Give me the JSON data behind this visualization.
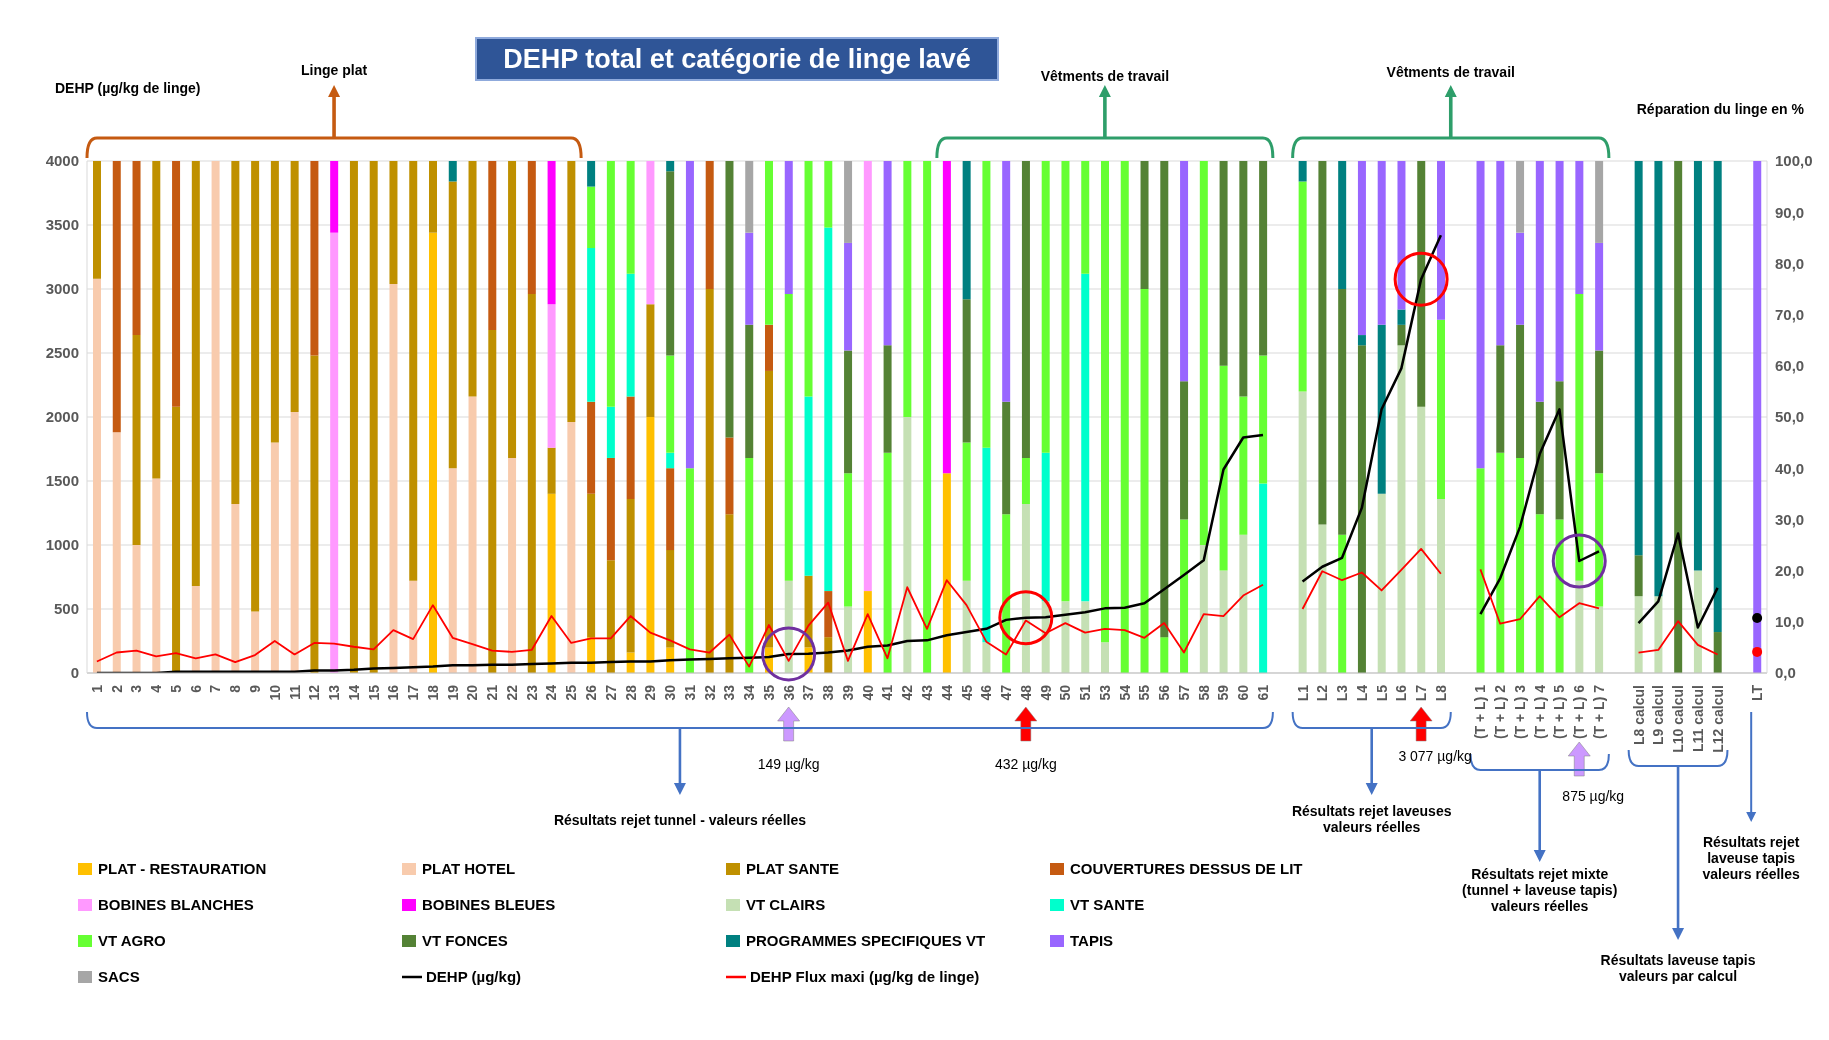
{
  "chart_data": {
    "type": "bar",
    "stacked": true,
    "title": "DEHP total et catégorie de linge lavé",
    "ylabel": "DEHP (µg/kg de linge)",
    "y2label": "Réparation du linge en %",
    "categories": [
      "1",
      "2",
      "3",
      "4",
      "5",
      "6",
      "7",
      "8",
      "9",
      "10",
      "11",
      "12",
      "13",
      "14",
      "15",
      "16",
      "17",
      "18",
      "19",
      "20",
      "21",
      "22",
      "23",
      "24",
      "25",
      "26",
      "27",
      "28",
      "29",
      "30",
      "31",
      "32",
      "33",
      "34",
      "35",
      "36",
      "37",
      "38",
      "39",
      "40",
      "41",
      "42",
      "43",
      "44",
      "45",
      "46",
      "47",
      "48",
      "49",
      "50",
      "51",
      "53",
      "54",
      "55",
      "56",
      "57",
      "58",
      "59",
      "60",
      "61",
      null,
      "L1",
      "L2",
      "L3",
      "L4",
      "L5",
      "L6",
      "L7",
      "L8",
      null,
      "(T + L) 1",
      "(T + L) 2",
      "(T + L) 3",
      "(T + L) 4",
      "(T + L) 5",
      "(T + L) 6",
      "(T + L) 7",
      null,
      "L8 calcul",
      "L9 calcul",
      "L10 calcul",
      "L11 calcul",
      "L12 calcul",
      null,
      "LT"
    ],
    "ylim": [
      0,
      4000
    ],
    "yticks": [
      0,
      500,
      1000,
      1500,
      2000,
      2500,
      3000,
      3500,
      4000
    ],
    "y2lim": [
      0,
      100
    ],
    "y2ticks": [
      {
        "value": 0,
        "label": "0,0"
      },
      {
        "value": 10,
        "label": "10,0"
      },
      {
        "value": 20,
        "label": "20,0"
      },
      {
        "value": 30,
        "label": "30,0"
      },
      {
        "value": 40,
        "label": "40,0"
      },
      {
        "value": 50,
        "label": "50,0"
      },
      {
        "value": 60,
        "label": "60,0"
      },
      {
        "value": 70,
        "label": "70,0"
      },
      {
        "value": 80,
        "label": "80,0"
      },
      {
        "value": 90,
        "label": "90,0"
      },
      {
        "value": 100,
        "label": "100,0"
      }
    ],
    "grid": "y",
    "legend": "bottom",
    "series": [
      {
        "name": "PLAT - RESTAURATION",
        "color": "#ffc000",
        "axis": "y2",
        "values": [
          null,
          null,
          null,
          null,
          null,
          null,
          null,
          null,
          null,
          null,
          null,
          null,
          null,
          null,
          null,
          null,
          null,
          86,
          null,
          null,
          null,
          null,
          null,
          35,
          null,
          7,
          null,
          4,
          50,
          5,
          null,
          null,
          null,
          null,
          5,
          null,
          5,
          null,
          null,
          16,
          null,
          null,
          null,
          39,
          null,
          null,
          null,
          null,
          null,
          null,
          null,
          null,
          null,
          null,
          null,
          null,
          null,
          null,
          null,
          null,
          null,
          null,
          null,
          null,
          null,
          null,
          null,
          null,
          null,
          null,
          null,
          null,
          null,
          null,
          null,
          null,
          null,
          null,
          null,
          null,
          null,
          null,
          null,
          null,
          null
        ]
      },
      {
        "name": "PLAT HOTEL",
        "color": "#f8cbad",
        "axis": "y2",
        "values": [
          77,
          47,
          25,
          38,
          null,
          17,
          100,
          33,
          12,
          45,
          51,
          null,
          null,
          null,
          null,
          76,
          18,
          null,
          40,
          54,
          null,
          42,
          null,
          null,
          49,
          null,
          null,
          null,
          null,
          null,
          null,
          null,
          null,
          null,
          null,
          null,
          null,
          null,
          null,
          null,
          null,
          null,
          null,
          null,
          null,
          null,
          null,
          null,
          null,
          null,
          null,
          null,
          null,
          null,
          null,
          null,
          null,
          null,
          null,
          null,
          null,
          null,
          null,
          null,
          null,
          null,
          null,
          null,
          null,
          null,
          null,
          null,
          null,
          null,
          null,
          null,
          null,
          null,
          null,
          null,
          null,
          null,
          null,
          null,
          null
        ]
      },
      {
        "name": "PLAT SANTE",
        "color": "#bf9000",
        "axis": "y2",
        "values": [
          23,
          null,
          41,
          62,
          52,
          83,
          null,
          67,
          88,
          55,
          49,
          62,
          null,
          100,
          100,
          24,
          82,
          14,
          56,
          46,
          67,
          58,
          74,
          9,
          51,
          28,
          22,
          30,
          22,
          19,
          null,
          75,
          31,
          null,
          54,
          null,
          14,
          7,
          null,
          null,
          null,
          null,
          null,
          null,
          null,
          null,
          null,
          null,
          null,
          null,
          null,
          null,
          null,
          null,
          null,
          null,
          null,
          null,
          null,
          null,
          null,
          null,
          null,
          null,
          null,
          null,
          null,
          null,
          null,
          null,
          null,
          null,
          null,
          null,
          null,
          null,
          null,
          null,
          null,
          null,
          null,
          null,
          null,
          null,
          null
        ]
      },
      {
        "name": "COUVERTURES DESSUS DE LIT",
        "color": "#c55a11",
        "axis": "y2",
        "values": [
          null,
          53,
          34,
          null,
          48,
          null,
          null,
          null,
          null,
          null,
          null,
          38,
          null,
          null,
          null,
          null,
          null,
          null,
          null,
          null,
          33,
          null,
          26,
          null,
          null,
          18,
          20,
          20,
          null,
          16,
          null,
          25,
          15,
          null,
          9,
          null,
          null,
          9,
          null,
          null,
          null,
          null,
          null,
          null,
          null,
          null,
          null,
          null,
          null,
          null,
          null,
          null,
          null,
          null,
          null,
          null,
          null,
          null,
          null,
          null,
          null,
          null,
          null,
          null,
          null,
          null,
          null,
          null,
          null,
          null,
          null,
          null,
          null,
          null,
          null,
          null,
          null,
          null,
          null,
          null,
          null,
          null,
          null,
          null,
          null
        ]
      },
      {
        "name": "BOBINES BLANCHES",
        "color": "#ff99ff",
        "axis": "y2",
        "values": [
          null,
          null,
          null,
          null,
          null,
          null,
          null,
          null,
          null,
          null,
          null,
          null,
          86,
          null,
          null,
          null,
          null,
          null,
          null,
          null,
          null,
          null,
          null,
          28,
          null,
          null,
          null,
          null,
          28,
          null,
          null,
          null,
          null,
          null,
          null,
          null,
          null,
          null,
          null,
          84,
          null,
          null,
          null,
          null,
          null,
          null,
          null,
          null,
          null,
          null,
          null,
          null,
          null,
          null,
          null,
          null,
          null,
          null,
          null,
          null,
          null,
          null,
          null,
          null,
          null,
          null,
          null,
          null,
          null,
          null,
          null,
          null,
          null,
          null,
          null,
          null,
          null,
          null,
          null,
          null,
          null,
          null,
          null,
          null,
          null
        ]
      },
      {
        "name": "BOBINES BLEUES",
        "color": "#ff00ff",
        "axis": "y2",
        "values": [
          null,
          null,
          null,
          null,
          null,
          null,
          null,
          null,
          null,
          null,
          null,
          null,
          14,
          null,
          null,
          null,
          null,
          null,
          null,
          null,
          null,
          null,
          null,
          28,
          null,
          null,
          null,
          null,
          null,
          null,
          null,
          null,
          null,
          null,
          null,
          null,
          null,
          null,
          null,
          null,
          null,
          null,
          null,
          61,
          null,
          null,
          null,
          null,
          null,
          null,
          null,
          null,
          null,
          null,
          null,
          null,
          null,
          null,
          null,
          null,
          null,
          null,
          null,
          null,
          null,
          null,
          null,
          null,
          null,
          null,
          null,
          null,
          null,
          null,
          null,
          null,
          null,
          null,
          null,
          null,
          null,
          null,
          null,
          null,
          null
        ]
      },
      {
        "name": "VT CLAIRS",
        "color": "#c5e0b4",
        "axis": "y2",
        "values": [
          null,
          null,
          null,
          null,
          null,
          null,
          null,
          null,
          null,
          null,
          null,
          null,
          null,
          null,
          null,
          null,
          null,
          null,
          null,
          null,
          null,
          null,
          null,
          null,
          null,
          null,
          null,
          null,
          null,
          null,
          null,
          null,
          null,
          null,
          null,
          18,
          null,
          null,
          13,
          null,
          null,
          50,
          null,
          null,
          18,
          6,
          null,
          33,
          14,
          14,
          14,
          6,
          null,
          null,
          null,
          null,
          25,
          20,
          27,
          null,
          null,
          55,
          29,
          null,
          null,
          35,
          64,
          52,
          34,
          null,
          null,
          null,
          null,
          null,
          null,
          18,
          13,
          null,
          15,
          15,
          null,
          20,
          null,
          null,
          null
        ]
      },
      {
        "name": "VT SANTE",
        "color": "#00ffcc",
        "axis": "y2",
        "values": [
          null,
          null,
          null,
          null,
          null,
          null,
          null,
          null,
          null,
          null,
          null,
          null,
          null,
          null,
          null,
          null,
          null,
          null,
          null,
          null,
          null,
          null,
          null,
          null,
          null,
          30,
          10,
          24,
          null,
          3,
          null,
          null,
          null,
          null,
          null,
          null,
          35,
          71,
          null,
          null,
          null,
          null,
          null,
          null,
          null,
          38,
          null,
          null,
          29,
          null,
          64,
          null,
          null,
          null,
          null,
          null,
          null,
          null,
          null,
          37,
          null,
          null,
          null,
          null,
          null,
          null,
          null,
          null,
          null,
          null,
          null,
          null,
          null,
          null,
          null,
          null,
          null,
          null,
          null,
          null,
          null,
          null,
          null,
          null,
          null
        ]
      },
      {
        "name": "VT AGRO",
        "color": "#66ff33",
        "axis": "y2",
        "values": [
          null,
          null,
          null,
          null,
          null,
          null,
          null,
          null,
          null,
          null,
          null,
          null,
          null,
          null,
          null,
          null,
          null,
          null,
          null,
          null,
          null,
          null,
          null,
          null,
          null,
          12,
          48,
          22,
          null,
          19,
          40,
          null,
          null,
          42,
          32,
          56,
          46,
          13,
          26,
          null,
          43,
          50,
          100,
          null,
          27,
          56,
          31,
          9,
          57,
          86,
          22,
          94,
          100,
          75,
          7,
          30,
          75,
          40,
          27,
          25,
          null,
          41,
          null,
          27,
          null,
          null,
          null,
          null,
          35,
          null,
          40,
          43,
          42,
          31,
          30,
          56,
          26,
          null,
          null,
          null,
          null,
          null,
          null,
          null,
          null
        ]
      },
      {
        "name": "VT FONCES",
        "color": "#548235",
        "axis": "y2",
        "values": [
          null,
          null,
          null,
          null,
          null,
          null,
          null,
          null,
          null,
          null,
          null,
          null,
          null,
          null,
          null,
          null,
          null,
          null,
          null,
          null,
          null,
          null,
          null,
          null,
          null,
          null,
          null,
          null,
          null,
          36,
          null,
          null,
          54,
          26,
          null,
          null,
          null,
          null,
          24,
          null,
          21,
          null,
          null,
          null,
          28,
          null,
          22,
          58,
          null,
          null,
          null,
          null,
          null,
          25,
          93,
          27,
          null,
          40,
          46,
          38,
          null,
          null,
          71,
          48,
          64,
          null,
          4,
          48,
          null,
          null,
          null,
          21,
          26,
          22,
          27,
          null,
          24,
          null,
          8,
          null,
          100,
          null,
          8,
          null,
          null
        ]
      },
      {
        "name": "PROGRAMMES SPECIFIQUES VT",
        "color": "#008080",
        "axis": "y2",
        "values": [
          null,
          null,
          null,
          null,
          null,
          null,
          null,
          null,
          null,
          null,
          null,
          null,
          null,
          null,
          null,
          null,
          null,
          null,
          4,
          null,
          null,
          null,
          null,
          null,
          null,
          5,
          null,
          null,
          null,
          2,
          null,
          null,
          null,
          null,
          null,
          null,
          null,
          null,
          null,
          null,
          null,
          null,
          null,
          null,
          27,
          null,
          null,
          null,
          null,
          null,
          null,
          null,
          null,
          null,
          null,
          null,
          null,
          null,
          null,
          null,
          null,
          4,
          null,
          25,
          2,
          33,
          3,
          null,
          null,
          null,
          null,
          null,
          null,
          null,
          null,
          null,
          null,
          null,
          77,
          85,
          null,
          80,
          92,
          null,
          null
        ]
      },
      {
        "name": "TAPIS",
        "color": "#9966ff",
        "axis": "y2",
        "values": [
          null,
          null,
          null,
          null,
          null,
          null,
          null,
          null,
          null,
          null,
          null,
          null,
          null,
          null,
          null,
          null,
          null,
          null,
          null,
          null,
          null,
          null,
          null,
          null,
          null,
          null,
          null,
          null,
          null,
          null,
          60,
          null,
          null,
          18,
          null,
          26,
          null,
          null,
          21,
          null,
          36,
          null,
          null,
          null,
          null,
          null,
          47,
          null,
          null,
          null,
          null,
          null,
          null,
          null,
          null,
          43,
          null,
          null,
          null,
          null,
          null,
          null,
          null,
          null,
          34,
          32,
          29,
          null,
          31,
          null,
          60,
          36,
          18,
          47,
          43,
          26,
          21,
          null,
          null,
          null,
          null,
          null,
          null,
          null,
          100
        ]
      },
      {
        "name": "SACS",
        "color": "#a6a6a6",
        "axis": "y2",
        "values": [
          null,
          null,
          null,
          null,
          null,
          null,
          null,
          null,
          null,
          null,
          null,
          null,
          null,
          null,
          null,
          null,
          null,
          null,
          null,
          null,
          null,
          null,
          null,
          null,
          null,
          null,
          null,
          null,
          null,
          null,
          null,
          null,
          null,
          14,
          null,
          null,
          null,
          null,
          16,
          null,
          null,
          null,
          null,
          null,
          null,
          null,
          null,
          null,
          null,
          null,
          null,
          null,
          null,
          null,
          null,
          null,
          null,
          null,
          null,
          null,
          null,
          null,
          null,
          null,
          null,
          null,
          null,
          null,
          null,
          null,
          null,
          null,
          14,
          null,
          null,
          null,
          16,
          null,
          null,
          null,
          null,
          null,
          null,
          null,
          null
        ]
      },
      {
        "name": "DEHP (µg/kg)",
        "type": "line",
        "color": "#000000",
        "values": [
          0,
          0,
          0,
          0,
          10,
          10,
          10,
          10,
          10,
          10,
          10,
          20,
          20,
          25,
          35,
          40,
          45,
          50,
          60,
          60,
          65,
          65,
          70,
          75,
          80,
          80,
          85,
          90,
          90,
          100,
          105,
          110,
          115,
          120,
          125,
          149,
          150,
          160,
          175,
          205,
          215,
          250,
          255,
          295,
          320,
          345,
          415,
          432,
          435,
          455,
          475,
          505,
          510,
          545,
          655,
          765,
          880,
          1590,
          1840,
          1860,
          null,
          715,
          830,
          900,
          1290,
          2060,
          2380,
          3077,
          3420,
          null,
          460,
          740,
          1140,
          1710,
          2060,
          875,
          950,
          null,
          390,
          560,
          1090,
          355,
          665,
          null,
          430
        ]
      },
      {
        "name": "DEHP Flux maxi (µg/kg de linge)",
        "type": "line",
        "color": "#ff0000",
        "values": [
          90,
          160,
          175,
          130,
          155,
          115,
          145,
          85,
          140,
          250,
          145,
          235,
          230,
          205,
          185,
          335,
          265,
          530,
          275,
          225,
          175,
          165,
          180,
          445,
          235,
          270,
          270,
          445,
          315,
          255,
          185,
          160,
          300,
          50,
          375,
          95,
          370,
          550,
          95,
          460,
          115,
          670,
          345,
          725,
          530,
          245,
          145,
          410,
          310,
          390,
          315,
          345,
          335,
          275,
          390,
          160,
          460,
          445,
          605,
          690,
          null,
          500,
          795,
          725,
          785,
          645,
          805,
          970,
          775,
          null,
          810,
          385,
          420,
          600,
          435,
          545,
          505,
          null,
          160,
          180,
          405,
          220,
          145,
          null,
          165
        ]
      }
    ],
    "annotations": [
      "Linge plat",
      "Vêtments de travail",
      "Vêtments de travail",
      "149 µg/kg",
      "432 µg/kg",
      "3 077 µg/kg",
      "875 µg/kg",
      "Résultats rejet tunnel - valeurs réelles",
      "Résultats rejet laveuses valeurs réelles",
      "Résultats rejet mixte (tunnel + laveuse tapis) valeurs réelles",
      "Résultats laveuse tapis valeurs par calcul",
      "Résultats rejet laveuse tapis valeurs réelles"
    ]
  }
}
